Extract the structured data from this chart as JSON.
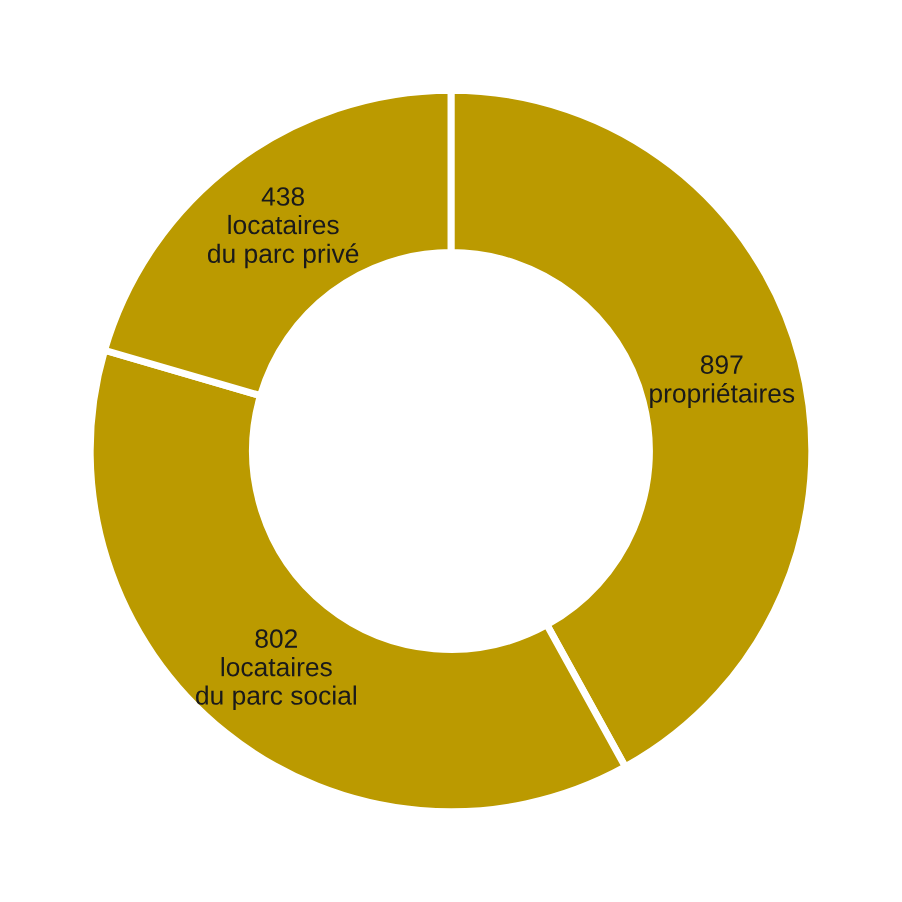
{
  "chart_data": {
    "type": "donut",
    "categories": [
      "propriétaires",
      "locataires\ndu parc social",
      "locataires\ndu parc privé"
    ],
    "values": [
      897,
      802,
      438
    ],
    "colors": [
      "#bb9a00",
      "#bb9a00",
      "#bb9a00"
    ],
    "data_labels": true
  }
}
